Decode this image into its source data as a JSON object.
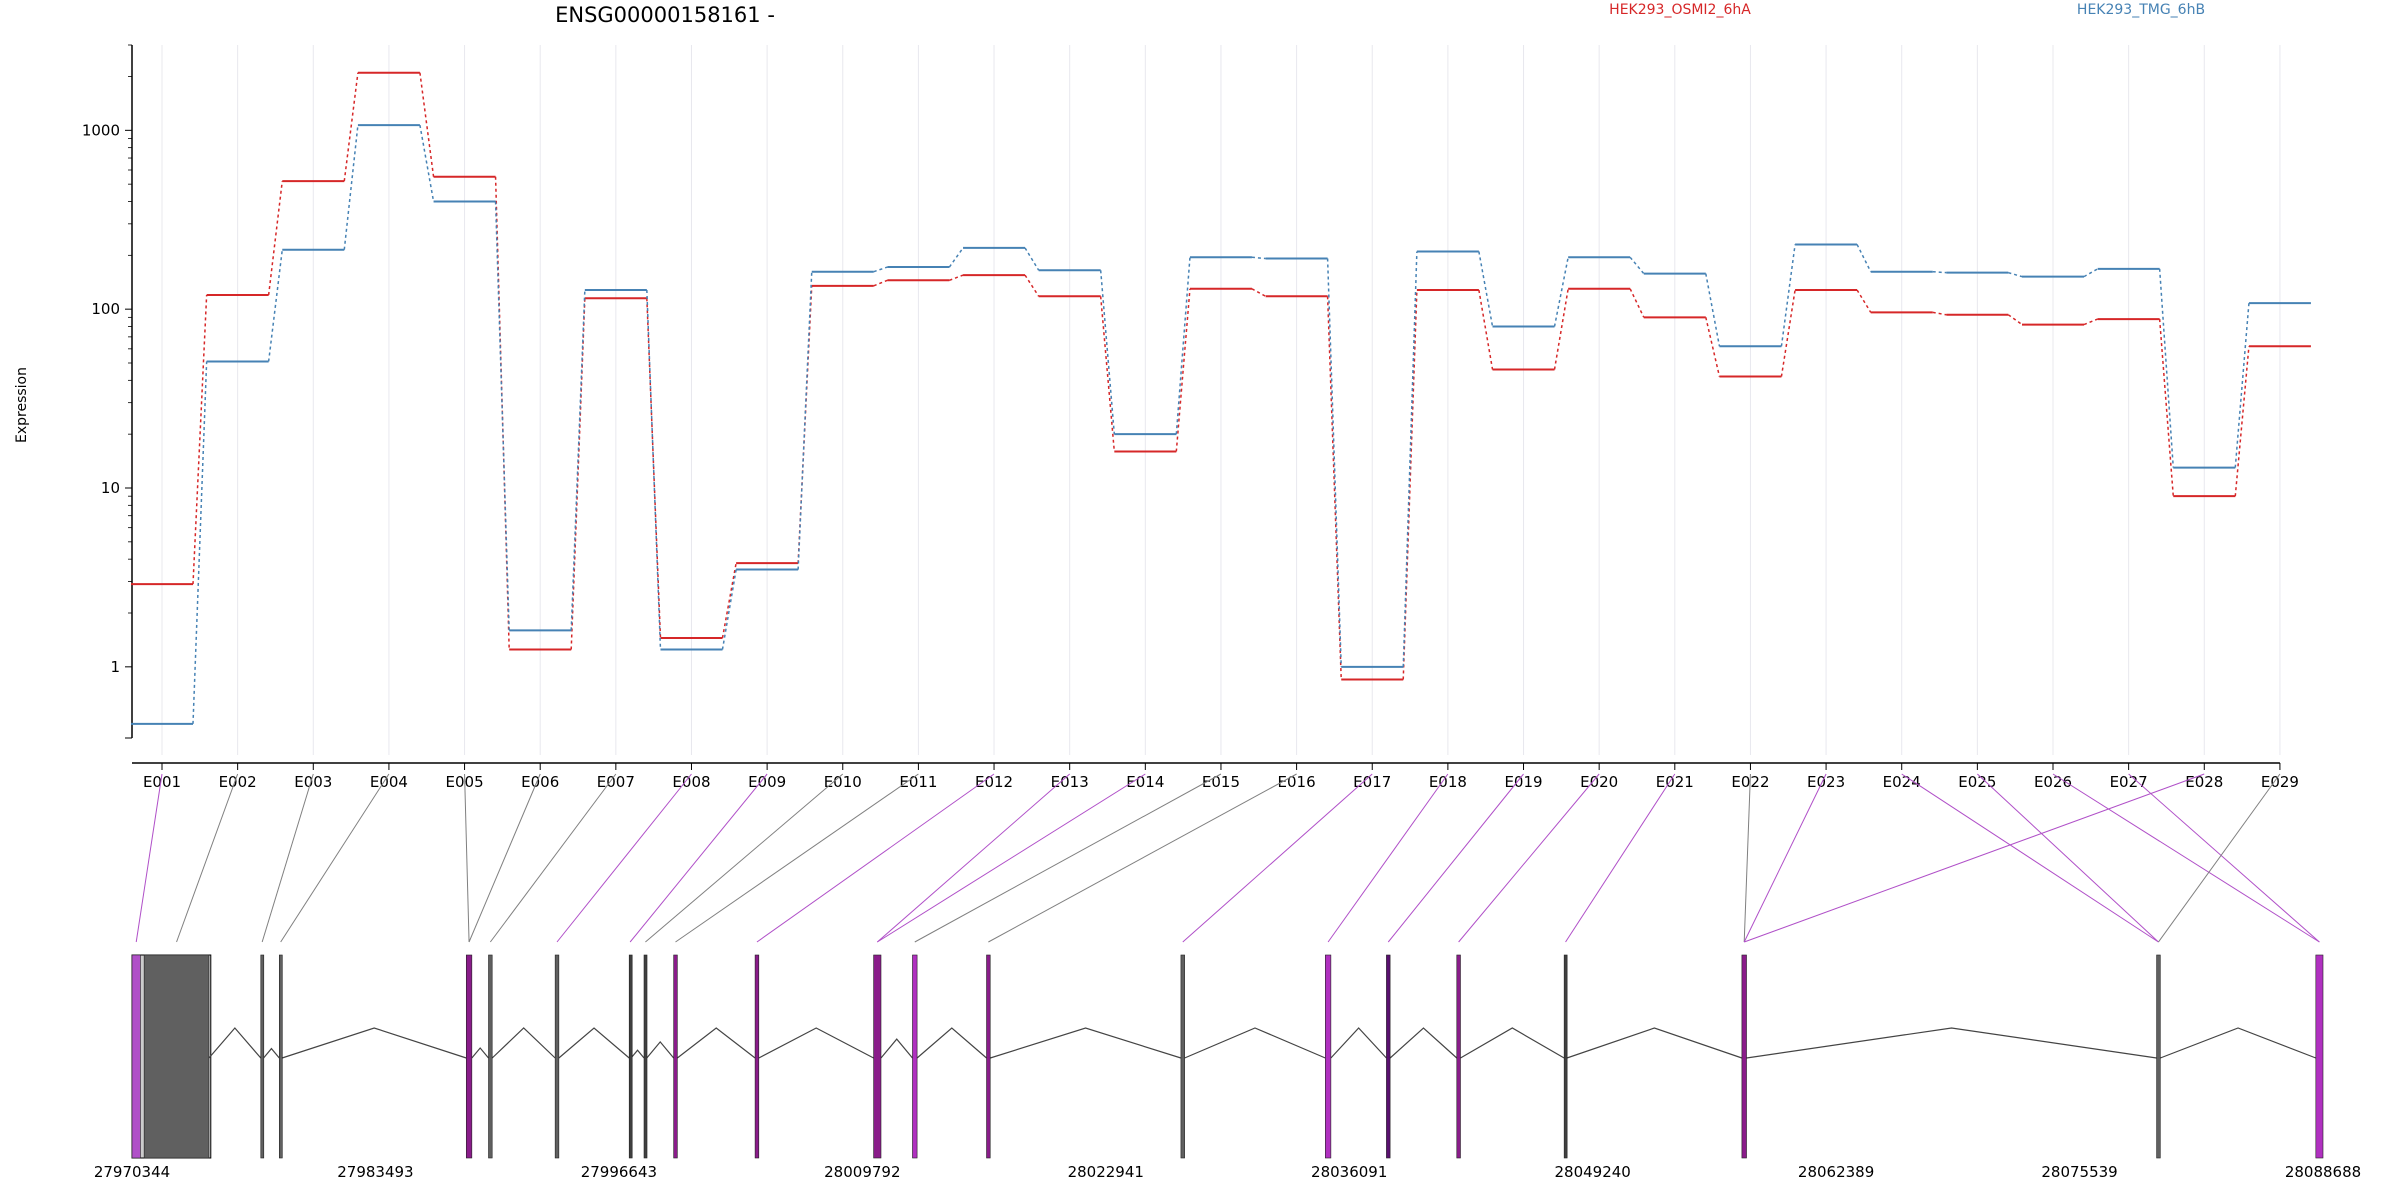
{
  "chart_data": {
    "type": "line",
    "title": "ENSG00000158161 -",
    "ylabel": "Expression",
    "yscale": "log",
    "ylim": [
      0.4,
      3000
    ],
    "yticks": [
      1,
      10,
      100,
      1000
    ],
    "ytick_labels": [
      "1",
      "10",
      "100",
      "1000"
    ],
    "categories": [
      "E001",
      "E002",
      "E003",
      "E004",
      "E005",
      "E006",
      "E007",
      "E008",
      "E009",
      "E010",
      "E011",
      "E012",
      "E013",
      "E014",
      "E015",
      "E016",
      "E017",
      "E018",
      "E019",
      "E020",
      "E021",
      "E022",
      "E023",
      "E024",
      "E025",
      "E026",
      "E027",
      "E028",
      "E029"
    ],
    "series": [
      {
        "name": "HEK293_OSMI2_6hA",
        "color": "#d62728",
        "values": [
          2.9,
          120,
          520,
          2100,
          550,
          1.25,
          115,
          1.45,
          3.8,
          135,
          145,
          155,
          118,
          16,
          130,
          118,
          0.85,
          128,
          46,
          130,
          90,
          42,
          128,
          96,
          93,
          82,
          88,
          9,
          62
        ]
      },
      {
        "name": "HEK293_TMG_6hB",
        "color": "#4682b4",
        "values": [
          0.48,
          51,
          215,
          1070,
          400,
          1.6,
          128,
          1.25,
          3.5,
          162,
          172,
          220,
          165,
          20,
          195,
          192,
          1.0,
          210,
          80,
          195,
          158,
          62,
          230,
          162,
          160,
          152,
          168,
          13,
          108
        ]
      }
    ],
    "gene_axis": {
      "tick_labels": [
        "27970344",
        "27983493",
        "27996643",
        "28009792",
        "28022941",
        "28036091",
        "28049240",
        "28062389",
        "28075539",
        "28088688"
      ],
      "exons": [
        {
          "start": 27970344,
          "end": 27970800,
          "color": "#b050c8"
        },
        {
          "start": 27971000,
          "end": 27974500,
          "color": "#606060"
        },
        {
          "start": 27977300,
          "end": 27977450,
          "color": "#606060"
        },
        {
          "start": 27978300,
          "end": 27978450,
          "color": "#606060"
        },
        {
          "start": 27988400,
          "end": 27988700,
          "color": "#8a1c8a"
        },
        {
          "start": 27989600,
          "end": 27989800,
          "color": "#606060"
        },
        {
          "start": 27993200,
          "end": 27993400,
          "color": "#606060"
        },
        {
          "start": 27997200,
          "end": 27997300,
          "color": "#404040"
        },
        {
          "start": 27998000,
          "end": 27998150,
          "color": "#404040"
        },
        {
          "start": 27999600,
          "end": 27999800,
          "color": "#8a1c8a"
        },
        {
          "start": 28004000,
          "end": 28004200,
          "color": "#8a1c8a"
        },
        {
          "start": 28010400,
          "end": 28010800,
          "color": "#8a1c8a"
        },
        {
          "start": 28012500,
          "end": 28012750,
          "color": "#b030c0"
        },
        {
          "start": 28016500,
          "end": 28016700,
          "color": "#8a1c8a"
        },
        {
          "start": 28027000,
          "end": 28027200,
          "color": "#606060"
        },
        {
          "start": 28034800,
          "end": 28035100,
          "color": "#b030c0"
        },
        {
          "start": 28038100,
          "end": 28038300,
          "color": "#5a1070"
        },
        {
          "start": 28041900,
          "end": 28042100,
          "color": "#8a1c8a"
        },
        {
          "start": 28047700,
          "end": 28047850,
          "color": "#404040"
        },
        {
          "start": 28057300,
          "end": 28057550,
          "color": "#8a1c8a"
        },
        {
          "start": 28079700,
          "end": 28079900,
          "color": "#606060"
        },
        {
          "start": 28088300,
          "end": 28088688,
          "color": "#b030c0"
        }
      ],
      "utr": {
        "start": 27970344,
        "end": 27974600
      },
      "exon_links": [
        0,
        0,
        1,
        1,
        2,
        3,
        4,
        4,
        5,
        6,
        7,
        8,
        8,
        9,
        10,
        11,
        12,
        13,
        13,
        14,
        15,
        16,
        17,
        18,
        19,
        20,
        21,
        22,
        23,
        24,
        25,
        26,
        27,
        28
      ],
      "bin_map": [
        0,
        1,
        2,
        3,
        4,
        4,
        5,
        6,
        7,
        8,
        9,
        10,
        11,
        11,
        12,
        13,
        14,
        15,
        16,
        17,
        18,
        19,
        19,
        20,
        20,
        21,
        21,
        19,
        20,
        21
      ],
      "link_colors": [
        "#b050c8",
        "#808080",
        "#808080",
        "#808080",
        "#808080",
        "#808080",
        "#808080",
        "#b050c8",
        "#b050c8",
        "#808080",
        "#808080",
        "#b050c8",
        "#b050c8",
        "#b050c8",
        "#808080",
        "#808080",
        "#b050c8",
        "#b050c8",
        "#b050c8",
        "#b050c8",
        "#b050c8",
        "#808080",
        "#b050c8",
        "#b050c8",
        "#b050c8",
        "#b050c8",
        "#b050c8",
        "#b050c8",
        "#808080",
        "#b050c8"
      ]
    }
  }
}
